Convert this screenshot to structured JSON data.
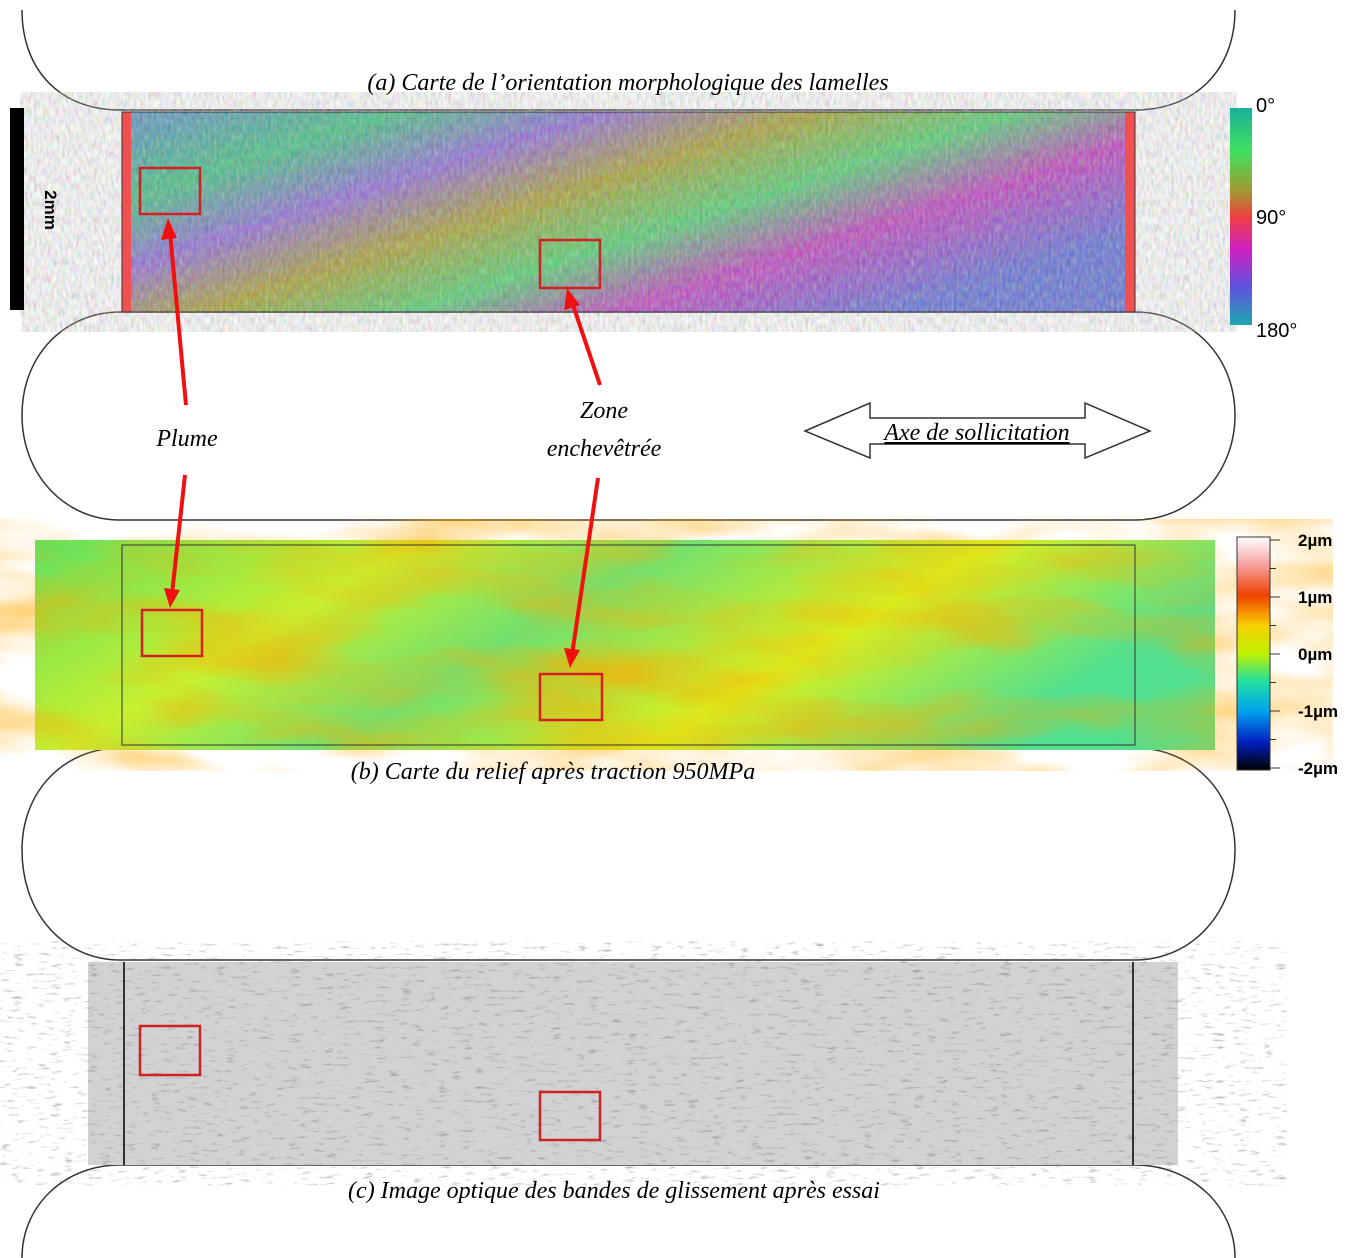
{
  "caption_a": "(a) Carte de l’orientation morphologique des lamelles",
  "caption_b": "(b) Carte du relief après traction 950MPa",
  "caption_c": "(c) Image optique des bandes de glissement après essai",
  "scale_bar": "2mm",
  "label_plume": "Plume",
  "label_zone": [
    "Zone",
    "enchevêtrée"
  ],
  "label_axis": "Axe de sollicitation",
  "colorbar_orientation": [
    "0°",
    "90°",
    "180°"
  ],
  "colorbar_relief": [
    "2µm",
    "1µm",
    "0µm",
    "-1µm",
    "-2µm"
  ]
}
